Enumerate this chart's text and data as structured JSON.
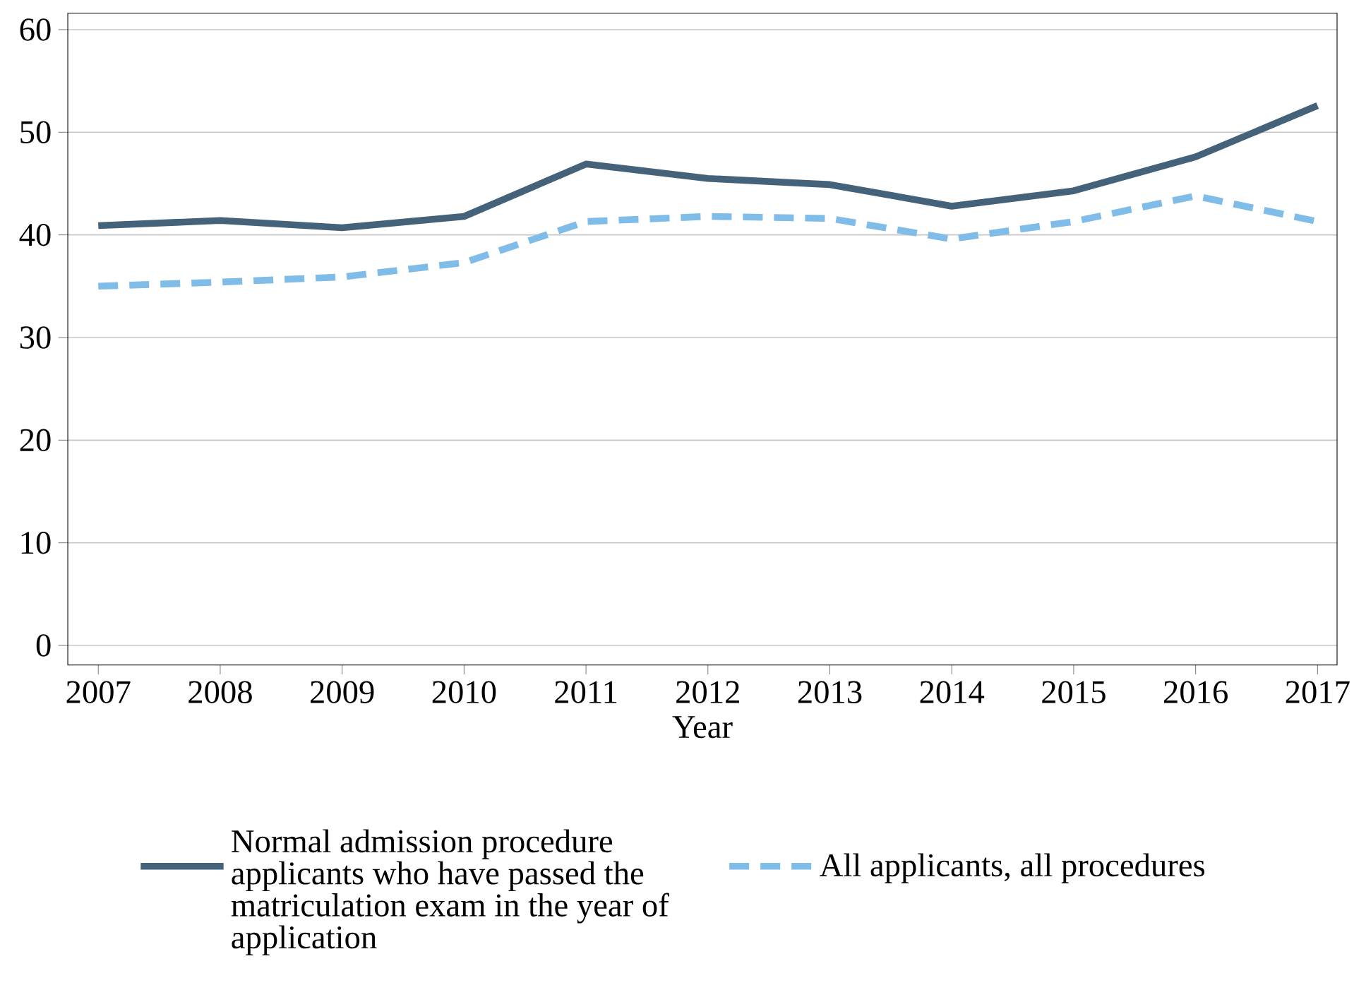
{
  "chart_data": {
    "type": "line",
    "xlabel": "Year",
    "x": [
      2007,
      2008,
      2009,
      2010,
      2011,
      2012,
      2013,
      2014,
      2015,
      2016,
      2017
    ],
    "series": [
      {
        "name": "Normal admission procedure applicants who have passed the matriculation exam in the year of application",
        "color": "#44637a",
        "line_style": "solid",
        "values": [
          40.9,
          41.4,
          40.7,
          41.8,
          46.9,
          45.5,
          44.9,
          42.8,
          44.3,
          47.6,
          52.6
        ]
      },
      {
        "name": "All applicants, all procedures",
        "color": "#7fbce8",
        "line_style": "dashed",
        "values": [
          35.0,
          35.4,
          35.9,
          37.3,
          41.3,
          41.8,
          41.6,
          39.6,
          41.3,
          43.8,
          41.3
        ]
      }
    ],
    "xlim": [
      2006.75,
      2017.16
    ],
    "xticks": [
      2007,
      2008,
      2009,
      2010,
      2011,
      2012,
      2013,
      2014,
      2015,
      2016,
      2017
    ],
    "ylim": [
      -1.9,
      61.6
    ],
    "yticks": [
      0,
      10,
      20,
      30,
      40,
      50,
      60
    ],
    "grid": "y",
    "legend": "bottom"
  }
}
